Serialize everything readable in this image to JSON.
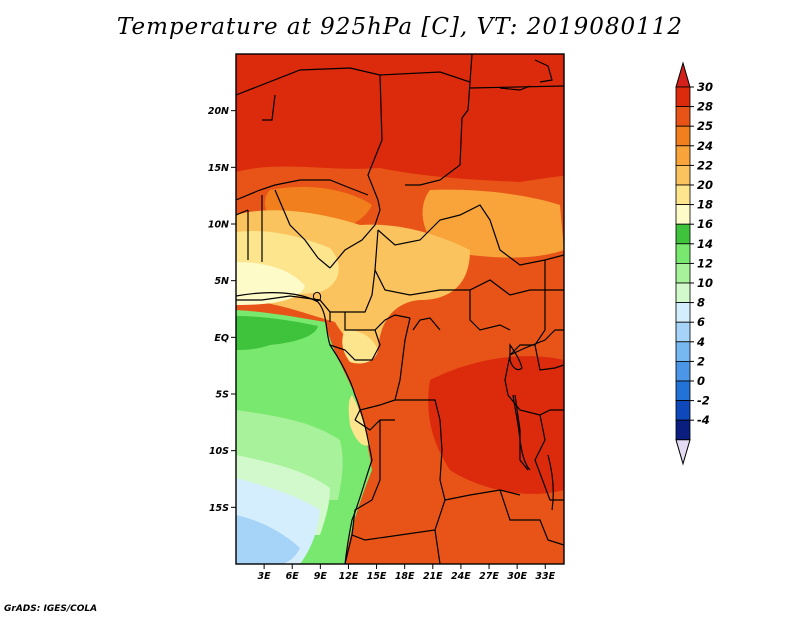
{
  "title": "Temperature at 925hPa [C], VT: 2019080112",
  "credit": "GrADS: IGES/COLA",
  "map": {
    "lon_range": [
      0,
      35
    ],
    "lat_range": [
      -20,
      25
    ],
    "lon_ticks": [
      "3E",
      "6E",
      "9E",
      "12E",
      "15E",
      "18E",
      "21E",
      "24E",
      "27E",
      "30E",
      "33E"
    ],
    "lat_ticks": [
      "20N",
      "15N",
      "10N",
      "5N",
      "EQ",
      "5S",
      "10S",
      "15S"
    ]
  },
  "colorbar": {
    "labels": [
      "30",
      "28",
      "25",
      "24",
      "22",
      "20",
      "18",
      "16",
      "14",
      "12",
      "10",
      "8",
      "6",
      "4",
      "2",
      "0",
      "-2",
      "-4"
    ],
    "colors": [
      "#dc2a0c",
      "#e85418",
      "#f27f1e",
      "#f8a43a",
      "#fbc35e",
      "#fde58e",
      "#fdfbc8",
      "#3fc33c",
      "#79e86e",
      "#a7f29a",
      "#d2f9cc",
      "#d5eefd",
      "#a6d3f8",
      "#78b8f2",
      "#4b96e6",
      "#2173d8",
      "#0f48ba",
      "#0a1e80"
    ],
    "top_arrow_color": "#d3201a",
    "bottom_arrow_color": "#e3dcf4"
  }
}
